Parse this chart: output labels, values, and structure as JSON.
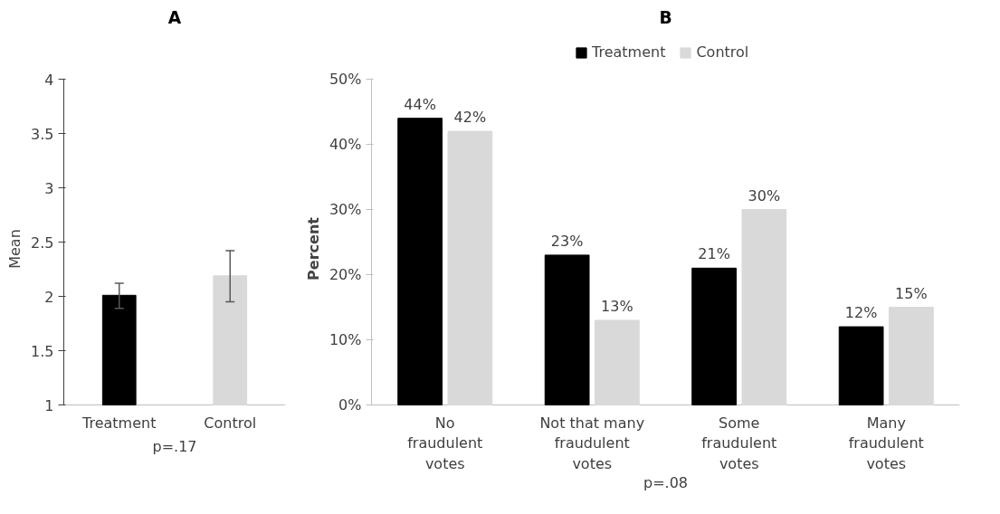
{
  "chart_data": [
    {
      "type": "bar",
      "title": "A",
      "ylabel": "Mean",
      "categories": [
        "Treatment",
        "Control"
      ],
      "series": [
        {
          "values": [
            2.01,
            2.19
          ],
          "errors": [
            [
              1.89,
              2.12
            ],
            [
              1.95,
              2.42
            ]
          ]
        }
      ],
      "colors": [
        "#000000",
        "#d9d9d9"
      ],
      "ylim": [
        1,
        4
      ],
      "yticks": [
        1,
        1.5,
        2,
        2.5,
        3,
        3.5,
        4
      ],
      "grid": false,
      "annotations": [
        "p=.17"
      ]
    },
    {
      "type": "bar",
      "title": "B",
      "ylabel": "Percent",
      "categories": [
        "No\nfraudulent\nvotes",
        "Not that many\nfraudulent\nvotes",
        "Some\nfraudulent\nvotes",
        "Many\nfraudulent\nvotes"
      ],
      "series": [
        {
          "name": "Treatment",
          "color": "#000000",
          "values": [
            44,
            23,
            21,
            12
          ],
          "value_labels": [
            "44%",
            "23%",
            "21%",
            "12%"
          ]
        },
        {
          "name": "Control",
          "color": "#d9d9d9",
          "values": [
            42,
            13,
            30,
            15
          ],
          "value_labels": [
            "42%",
            "13%",
            "30%",
            "15%"
          ]
        }
      ],
      "ylim": [
        0,
        50
      ],
      "yticks": [
        {
          "value": 0,
          "label": "0%"
        },
        {
          "value": 10,
          "label": "10%"
        },
        {
          "value": 20,
          "label": "20%"
        },
        {
          "value": 30,
          "label": "30%"
        },
        {
          "value": 40,
          "label": "40%"
        },
        {
          "value": 50,
          "label": "50%"
        }
      ],
      "grid": false,
      "legend": "top",
      "annotations": [
        "p=.08"
      ]
    }
  ]
}
